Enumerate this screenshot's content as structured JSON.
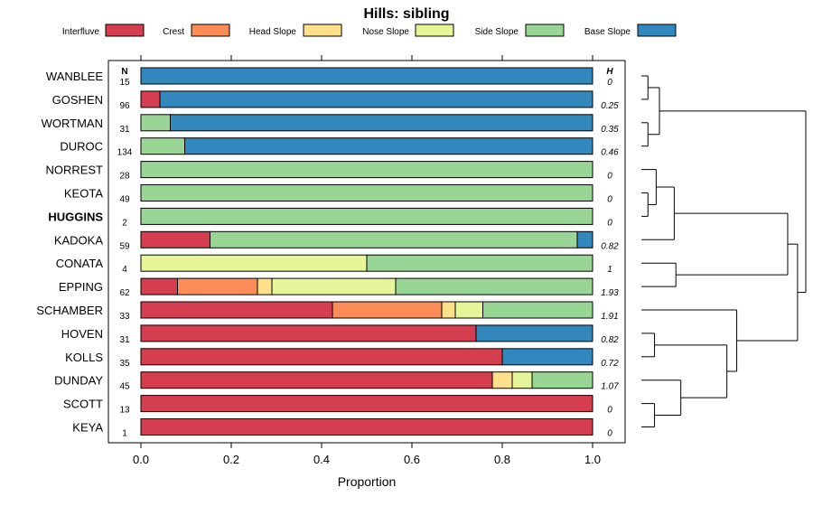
{
  "chart_data": {
    "type": "bar",
    "title": "Hills: sibling",
    "xlabel": "Proportion",
    "ylabel": "",
    "xlim": [
      0,
      1
    ],
    "xticks": [
      "0.0",
      "0.2",
      "0.4",
      "0.6",
      "0.8",
      "1.0"
    ],
    "n_header": "N",
    "h_header": "H",
    "legend": [
      {
        "name": "Interfluve",
        "color": "#D53E4F"
      },
      {
        "name": "Crest",
        "color": "#FC8D59"
      },
      {
        "name": "Head Slope",
        "color": "#FEE08B"
      },
      {
        "name": "Nose Slope",
        "color": "#E6F598"
      },
      {
        "name": "Side Slope",
        "color": "#99D594"
      },
      {
        "name": "Base Slope",
        "color": "#3288BD"
      }
    ],
    "rows": [
      {
        "name": "WANBLEE",
        "n": "15",
        "h": "0",
        "highlight": false,
        "values": [
          0,
          0,
          0,
          0,
          0,
          1.0
        ]
      },
      {
        "name": "GOSHEN",
        "n": "96",
        "h": "0.25",
        "highlight": false,
        "values": [
          0.042,
          0,
          0,
          0,
          0,
          0.958
        ]
      },
      {
        "name": "WORTMAN",
        "n": "31",
        "h": "0.35",
        "highlight": false,
        "values": [
          0,
          0,
          0,
          0,
          0.065,
          0.935
        ]
      },
      {
        "name": "DUROC",
        "n": "134",
        "h": "0.46",
        "highlight": false,
        "values": [
          0,
          0,
          0,
          0,
          0.097,
          0.903
        ]
      },
      {
        "name": "NORREST",
        "n": "28",
        "h": "0",
        "highlight": false,
        "values": [
          0,
          0,
          0,
          0,
          1.0,
          0
        ]
      },
      {
        "name": "KEOTA",
        "n": "49",
        "h": "0",
        "highlight": false,
        "values": [
          0,
          0,
          0,
          0,
          1.0,
          0
        ]
      },
      {
        "name": "HUGGINS",
        "n": "2",
        "h": "0",
        "highlight": true,
        "values": [
          0,
          0,
          0,
          0,
          1.0,
          0
        ]
      },
      {
        "name": "KADOKA",
        "n": "59",
        "h": "0.82",
        "highlight": false,
        "values": [
          0.153,
          0,
          0,
          0,
          0.813,
          0.034
        ]
      },
      {
        "name": "CONATA",
        "n": "4",
        "h": "1",
        "highlight": false,
        "values": [
          0,
          0,
          0,
          0.5,
          0.5,
          0
        ]
      },
      {
        "name": "EPPING",
        "n": "62",
        "h": "1.93",
        "highlight": false,
        "values": [
          0.081,
          0.177,
          0.032,
          0.274,
          0.436,
          0
        ]
      },
      {
        "name": "SCHAMBER",
        "n": "33",
        "h": "1.91",
        "highlight": false,
        "values": [
          0.424,
          0.242,
          0.03,
          0.061,
          0.243,
          0
        ]
      },
      {
        "name": "HOVEN",
        "n": "31",
        "h": "0.82",
        "highlight": false,
        "values": [
          0.742,
          0,
          0,
          0,
          0,
          0.258
        ]
      },
      {
        "name": "KOLLS",
        "n": "35",
        "h": "0.72",
        "highlight": false,
        "values": [
          0.8,
          0,
          0,
          0,
          0,
          0.2
        ]
      },
      {
        "name": "DUNDAY",
        "n": "45",
        "h": "1.07",
        "highlight": false,
        "values": [
          0.778,
          0,
          0.044,
          0.044,
          0.134,
          0
        ]
      },
      {
        "name": "SCOTT",
        "n": "13",
        "h": "0",
        "highlight": false,
        "values": [
          1.0,
          0,
          0,
          0,
          0,
          0
        ]
      },
      {
        "name": "KEYA",
        "n": "1",
        "h": "0",
        "highlight": false,
        "values": [
          1.0,
          0,
          0,
          0,
          0,
          0
        ]
      }
    ],
    "dendrogram": {
      "type": "hierarchical-clustering",
      "leaf_order": [
        "WANBLEE",
        "GOSHEN",
        "WORTMAN",
        "DUROC",
        "NORREST",
        "KEOTA",
        "HUGGINS",
        "KADOKA",
        "CONATA",
        "EPPING",
        "SCHAMBER",
        "HOVEN",
        "KOLLS",
        "DUNDAY",
        "SCOTT",
        "KEYA"
      ],
      "merges": [
        {
          "id": "A",
          "children": [
            "WANBLEE",
            "GOSHEN"
          ],
          "height": 0.04
        },
        {
          "id": "B",
          "children": [
            "WORTMAN",
            "DUROC"
          ],
          "height": 0.04
        },
        {
          "id": "C",
          "children": [
            "A",
            "B"
          ],
          "height": 0.11
        },
        {
          "id": "D",
          "children": [
            "KEOTA",
            "HUGGINS"
          ],
          "height": 0.04
        },
        {
          "id": "E",
          "children": [
            "NORREST",
            "D"
          ],
          "height": 0.09
        },
        {
          "id": "F",
          "children": [
            "E",
            "KADOKA"
          ],
          "height": 0.2
        },
        {
          "id": "G",
          "children": [
            "CONATA",
            "EPPING"
          ],
          "height": 0.21
        },
        {
          "id": "H",
          "children": [
            "F",
            "G"
          ],
          "height": 0.89
        },
        {
          "id": "I",
          "children": [
            "HOVEN",
            "KOLLS"
          ],
          "height": 0.08
        },
        {
          "id": "J",
          "children": [
            "SCOTT",
            "KEYA"
          ],
          "height": 0.08
        },
        {
          "id": "K",
          "children": [
            "DUNDAY",
            "J"
          ],
          "height": 0.24
        },
        {
          "id": "L",
          "children": [
            "I",
            "K"
          ],
          "height": 0.52
        },
        {
          "id": "M",
          "children": [
            "SCHAMBER",
            "L"
          ],
          "height": 0.58
        },
        {
          "id": "N",
          "children": [
            "H",
            "M"
          ],
          "height": 0.95
        },
        {
          "id": "O",
          "children": [
            "C",
            "N"
          ],
          "height": 1.0
        }
      ]
    }
  }
}
